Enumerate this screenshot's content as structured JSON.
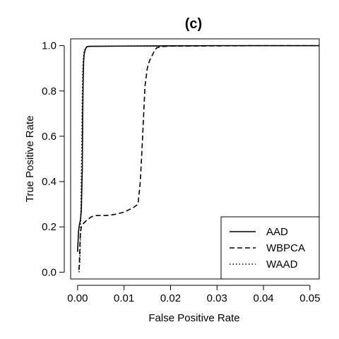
{
  "chart_data": {
    "type": "line",
    "title": "(c)",
    "xlabel": "False Positive Rate",
    "ylabel": "True Positive Rate",
    "xlim": [
      -0.0015,
      0.052
    ],
    "ylim": [
      -0.03,
      1.03
    ],
    "x_ticks": [
      0.0,
      0.01,
      0.02,
      0.03,
      0.04,
      0.05
    ],
    "x_tick_labels": [
      "0.00",
      "0.01",
      "0.02",
      "0.03",
      "0.04",
      "0.05"
    ],
    "y_ticks": [
      0.0,
      0.2,
      0.4,
      0.6,
      0.8,
      1.0
    ],
    "y_tick_labels": [
      "0.0",
      "0.2",
      "0.4",
      "0.6",
      "0.8",
      "1.0"
    ],
    "grid": false,
    "legend_position": "bottom-right",
    "series": [
      {
        "name": "AAD",
        "style": "solid",
        "x": [
          0.0,
          0.0002,
          0.0004,
          0.0006,
          0.0008,
          0.001,
          0.0011,
          0.0012,
          0.0013,
          0.0014,
          0.0016,
          0.0018,
          0.002,
          0.0025,
          0.003,
          0.01,
          0.02,
          0.03,
          0.04,
          0.052
        ],
        "y": [
          0.09,
          0.18,
          0.21,
          0.23,
          0.27,
          0.45,
          0.7,
          0.85,
          0.93,
          0.96,
          0.98,
          0.99,
          0.995,
          0.997,
          0.997,
          0.998,
          0.999,
          1.0,
          1.0,
          1.0
        ]
      },
      {
        "name": "WBPCA",
        "style": "dashed",
        "x": [
          0.0003,
          0.0004,
          0.0005,
          0.0006,
          0.0008,
          0.001,
          0.0015,
          0.002,
          0.003,
          0.004,
          0.005,
          0.006,
          0.007,
          0.008,
          0.009,
          0.01,
          0.011,
          0.012,
          0.013,
          0.0135,
          0.014,
          0.0145,
          0.015,
          0.0155,
          0.016,
          0.0165,
          0.017,
          0.018,
          0.02,
          0.03,
          0.04,
          0.052
        ],
        "y": [
          0.01,
          0.05,
          0.12,
          0.17,
          0.2,
          0.21,
          0.22,
          0.23,
          0.245,
          0.25,
          0.25,
          0.25,
          0.252,
          0.255,
          0.26,
          0.265,
          0.275,
          0.285,
          0.3,
          0.4,
          0.6,
          0.82,
          0.9,
          0.935,
          0.955,
          0.975,
          0.99,
          0.996,
          0.998,
          0.999,
          1.0,
          1.0
        ]
      },
      {
        "name": "WAAD",
        "style": "dotted",
        "x": [
          0.0003,
          0.0005,
          0.0007,
          0.0009,
          0.001,
          0.0011,
          0.0012,
          0.0013,
          0.0015,
          0.0018,
          0.002,
          0.003,
          0.01,
          0.02,
          0.03,
          0.04,
          0.052
        ],
        "y": [
          0.0,
          0.05,
          0.25,
          0.55,
          0.75,
          0.87,
          0.93,
          0.96,
          0.98,
          0.99,
          0.995,
          0.997,
          0.998,
          0.999,
          1.0,
          1.0,
          1.0
        ]
      }
    ]
  }
}
